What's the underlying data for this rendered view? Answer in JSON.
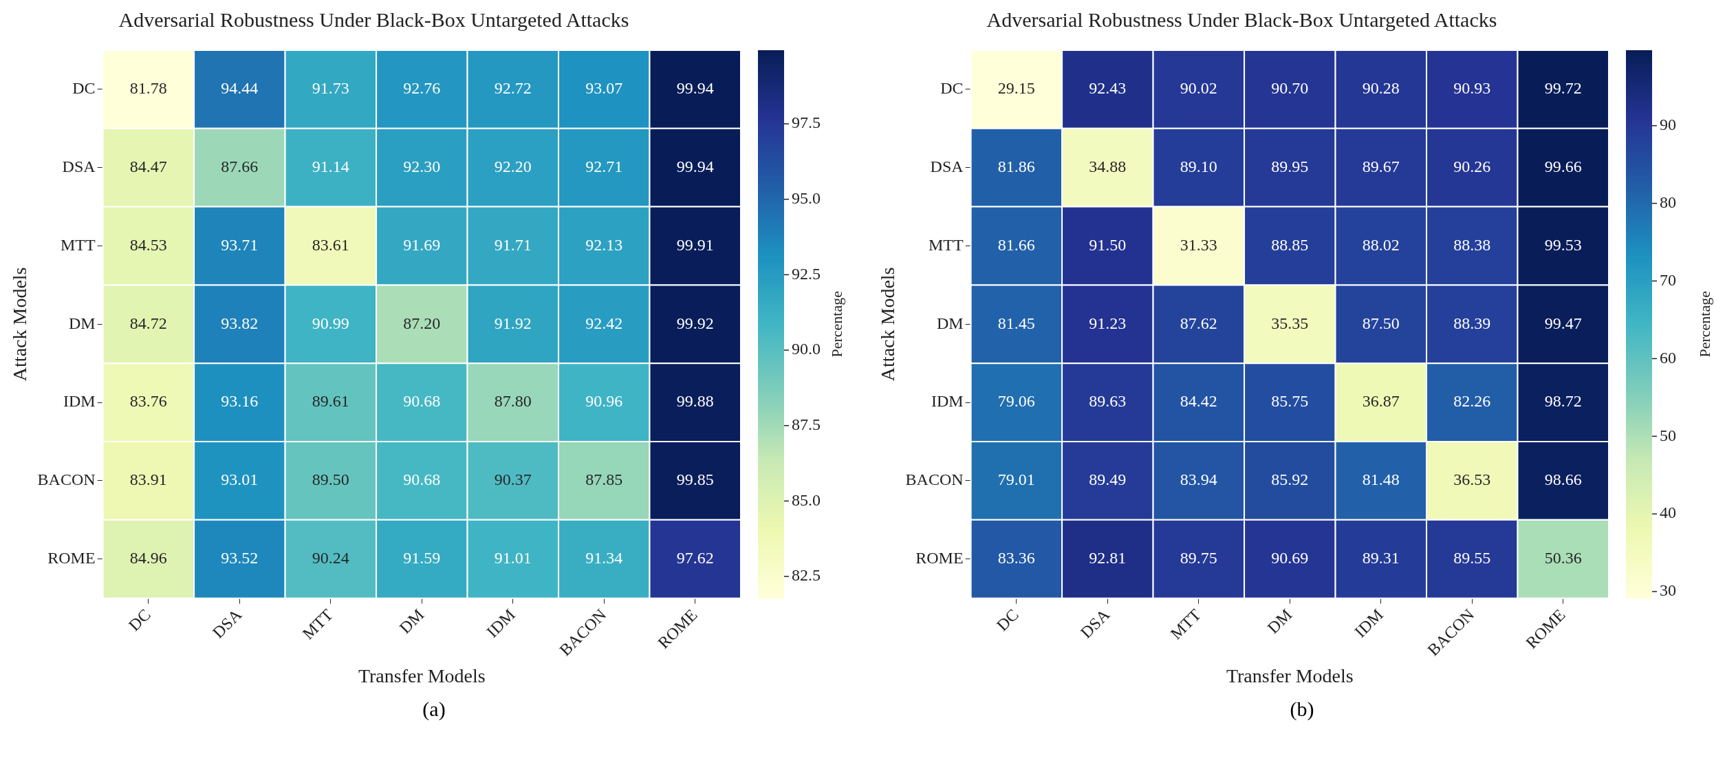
{
  "chart_data": [
    {
      "type": "heatmap",
      "title": "Adversarial Robustness Under Black-Box Untargeted Attacks",
      "xlabel": "Transfer Models",
      "ylabel": "Attack Models",
      "clabel": "Percentage",
      "data_labels": true,
      "categories": [
        "DC",
        "DSA",
        "MTT",
        "DM",
        "IDM",
        "BACON",
        "ROME"
      ],
      "y_categories": [
        "DC",
        "DSA",
        "MTT",
        "DM",
        "IDM",
        "BACON",
        "ROME"
      ],
      "cells": [
        [
          81.78,
          94.44,
          91.73,
          92.76,
          92.72,
          93.07,
          99.94
        ],
        [
          84.47,
          87.66,
          91.14,
          92.3,
          92.2,
          92.71,
          99.94
        ],
        [
          84.53,
          93.71,
          83.61,
          91.69,
          91.71,
          92.13,
          99.91
        ],
        [
          84.72,
          93.82,
          90.99,
          87.2,
          91.92,
          92.42,
          99.92
        ],
        [
          83.76,
          93.16,
          89.61,
          90.68,
          87.8,
          90.96,
          99.88
        ],
        [
          83.91,
          93.01,
          89.5,
          90.68,
          90.37,
          87.85,
          99.85
        ],
        [
          84.96,
          93.52,
          90.24,
          91.59,
          91.01,
          91.34,
          97.62
        ]
      ],
      "cell_labels": [
        [
          "81.78",
          "94.44",
          "91.73",
          "92.76",
          "92.72",
          "93.07",
          "99.94"
        ],
        [
          "84.47",
          "87.66",
          "91.14",
          "92.30",
          "92.20",
          "92.71",
          "99.94"
        ],
        [
          "84.53",
          "93.71",
          "83.61",
          "91.69",
          "91.71",
          "92.13",
          "99.91"
        ],
        [
          "84.72",
          "93.82",
          "90.99",
          "87.20",
          "91.92",
          "92.42",
          "99.92"
        ],
        [
          "83.76",
          "93.16",
          "89.61",
          "90.68",
          "87.80",
          "90.96",
          "99.88"
        ],
        [
          "83.91",
          "93.01",
          "89.50",
          "90.68",
          "90.37",
          "87.85",
          "99.85"
        ],
        [
          "84.96",
          "93.52",
          "90.24",
          "91.59",
          "91.01",
          "91.34",
          "97.62"
        ]
      ],
      "clim": [
        81.78,
        99.94
      ],
      "cticks": [
        82.5,
        {
          "value": 85,
          "label": "85.0"
        },
        87.5,
        {
          "value": 90,
          "label": "90.0"
        },
        92.5,
        {
          "value": 95,
          "label": "95.0"
        },
        97.5
      ],
      "annotations": [
        "(a)"
      ]
    },
    {
      "type": "heatmap",
      "title": "Adversarial Robustness Under Black-Box Untargeted Attacks",
      "xlabel": "Transfer Models",
      "ylabel": "Attack Models",
      "clabel": "Percentage",
      "data_labels": true,
      "categories": [
        "DC",
        "DSA",
        "MTT",
        "DM",
        "IDM",
        "BACON",
        "ROME"
      ],
      "y_categories": [
        "DC",
        "DSA",
        "MTT",
        "DM",
        "IDM",
        "BACON",
        "ROME"
      ],
      "cells": [
        [
          29.15,
          92.43,
          90.02,
          90.7,
          90.28,
          90.93,
          99.72
        ],
        [
          81.86,
          34.88,
          89.1,
          89.95,
          89.67,
          90.26,
          99.66
        ],
        [
          81.66,
          91.5,
          31.33,
          88.85,
          88.02,
          88.38,
          99.53
        ],
        [
          81.45,
          91.23,
          87.62,
          35.35,
          87.5,
          88.39,
          99.47
        ],
        [
          79.06,
          89.63,
          84.42,
          85.75,
          36.87,
          82.26,
          98.72
        ],
        [
          79.01,
          89.49,
          83.94,
          85.92,
          81.48,
          36.53,
          98.66
        ],
        [
          83.36,
          92.81,
          89.75,
          90.69,
          89.31,
          89.55,
          50.36
        ]
      ],
      "cell_labels": [
        [
          "29.15",
          "92.43",
          "90.02",
          "90.70",
          "90.28",
          "90.93",
          "99.72"
        ],
        [
          "81.86",
          "34.88",
          "89.10",
          "89.95",
          "89.67",
          "90.26",
          "99.66"
        ],
        [
          "81.66",
          "91.50",
          "31.33",
          "88.85",
          "88.02",
          "88.38",
          "99.53"
        ],
        [
          "81.45",
          "91.23",
          "87.62",
          "35.35",
          "87.50",
          "88.39",
          "99.47"
        ],
        [
          "79.06",
          "89.63",
          "84.42",
          "85.75",
          "36.87",
          "82.26",
          "98.72"
        ],
        [
          "79.01",
          "89.49",
          "83.94",
          "85.92",
          "81.48",
          "36.53",
          "98.66"
        ],
        [
          "83.36",
          "92.81",
          "89.75",
          "90.69",
          "89.31",
          "89.55",
          "50.36"
        ]
      ],
      "clim": [
        29.15,
        99.72
      ],
      "cticks": [
        30,
        40,
        50,
        60,
        70,
        80,
        90
      ],
      "annotations": [
        "(b)"
      ]
    }
  ]
}
